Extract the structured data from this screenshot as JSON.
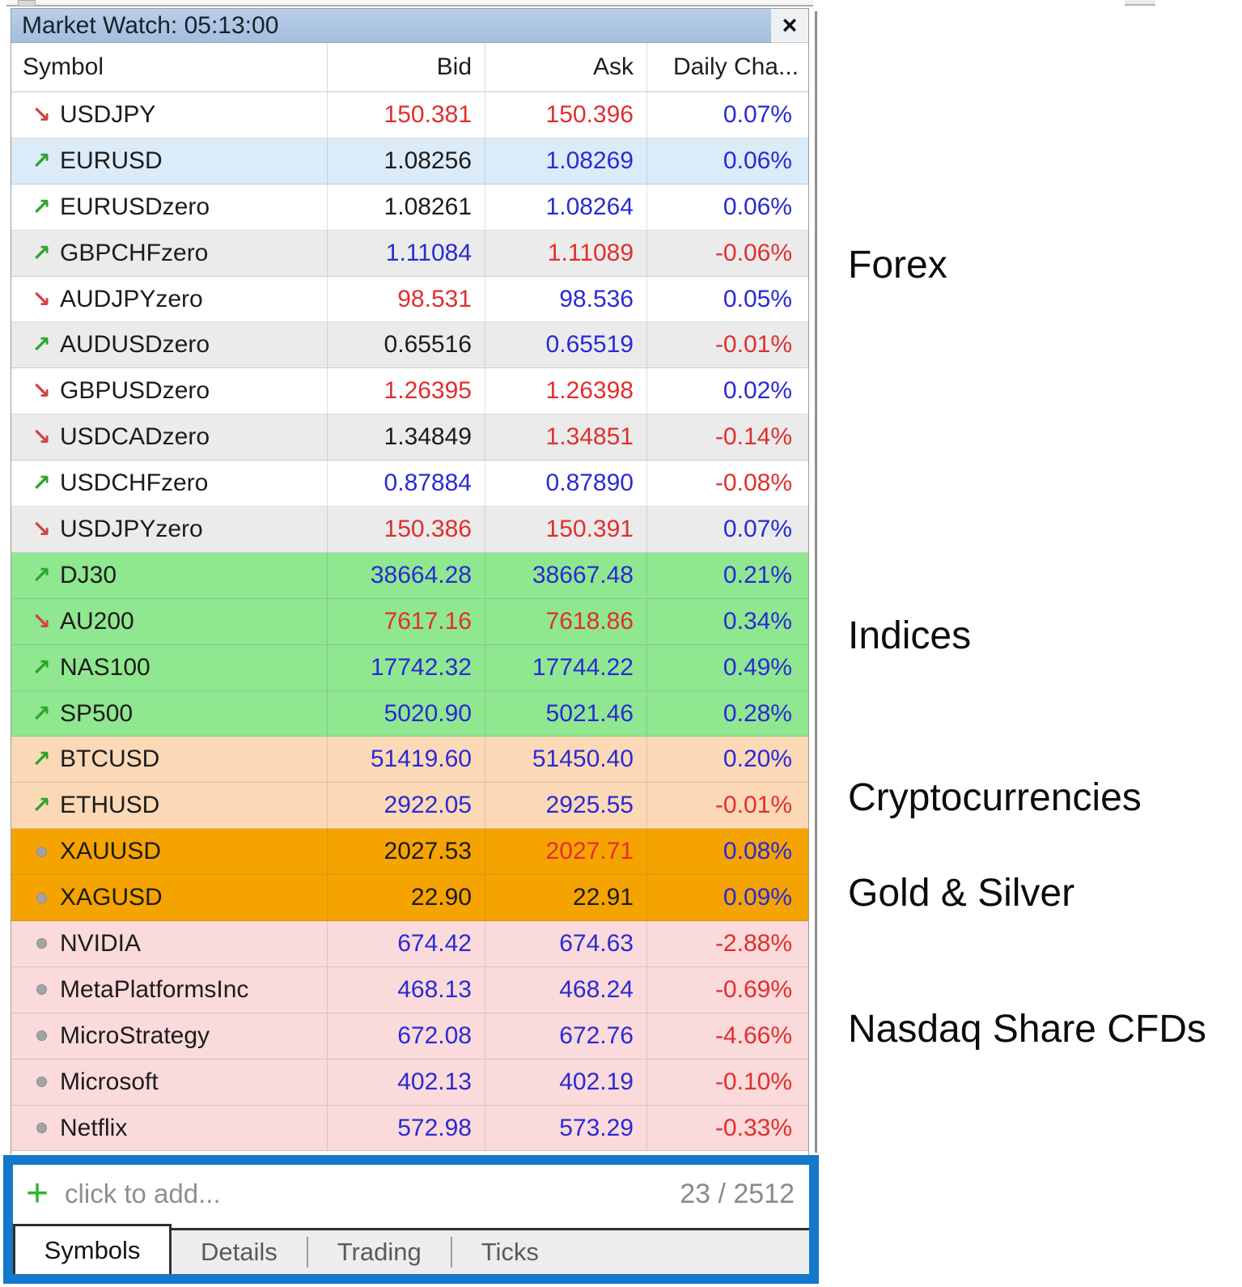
{
  "window": {
    "title": "Market Watch: 05:13:00",
    "close": "×"
  },
  "table": {
    "columns": [
      "Symbol",
      "Bid",
      "Ask",
      "Daily Cha..."
    ],
    "rows": [
      {
        "symbol": "USDJPY",
        "trend": "down",
        "bg": "white",
        "bid": "150.381",
        "bidColor": "red",
        "ask": "150.396",
        "askColor": "red",
        "change": "0.07%",
        "changeColor": "blue"
      },
      {
        "symbol": "EURUSD",
        "trend": "up",
        "bg": "blue",
        "bid": "1.08256",
        "bidColor": "black",
        "ask": "1.08269",
        "askColor": "blue",
        "change": "0.06%",
        "changeColor": "blue"
      },
      {
        "symbol": "EURUSDzero",
        "trend": "up",
        "bg": "white",
        "bid": "1.08261",
        "bidColor": "black",
        "ask": "1.08264",
        "askColor": "blue",
        "change": "0.06%",
        "changeColor": "blue"
      },
      {
        "symbol": "GBPCHFzero",
        "trend": "up",
        "bg": "alt",
        "bid": "1.11084",
        "bidColor": "blue",
        "ask": "1.11089",
        "askColor": "red",
        "change": "-0.06%",
        "changeColor": "red"
      },
      {
        "symbol": "AUDJPYzero",
        "trend": "down",
        "bg": "white",
        "bid": "98.531",
        "bidColor": "red",
        "ask": "98.536",
        "askColor": "blue",
        "change": "0.05%",
        "changeColor": "blue"
      },
      {
        "symbol": "AUDUSDzero",
        "trend": "up",
        "bg": "alt",
        "bid": "0.65516",
        "bidColor": "black",
        "ask": "0.65519",
        "askColor": "blue",
        "change": "-0.01%",
        "changeColor": "red"
      },
      {
        "symbol": "GBPUSDzero",
        "trend": "down",
        "bg": "white",
        "bid": "1.26395",
        "bidColor": "red",
        "ask": "1.26398",
        "askColor": "red",
        "change": "0.02%",
        "changeColor": "blue"
      },
      {
        "symbol": "USDCADzero",
        "trend": "down",
        "bg": "alt",
        "bid": "1.34849",
        "bidColor": "black",
        "ask": "1.34851",
        "askColor": "red",
        "change": "-0.14%",
        "changeColor": "red"
      },
      {
        "symbol": "USDCHFzero",
        "trend": "up",
        "bg": "white",
        "bid": "0.87884",
        "bidColor": "blue",
        "ask": "0.87890",
        "askColor": "blue",
        "change": "-0.08%",
        "changeColor": "red"
      },
      {
        "symbol": "USDJPYzero",
        "trend": "down",
        "bg": "alt",
        "bid": "150.386",
        "bidColor": "red",
        "ask": "150.391",
        "askColor": "red",
        "change": "0.07%",
        "changeColor": "blue"
      },
      {
        "symbol": "DJ30",
        "trend": "up",
        "bg": "green",
        "bid": "38664.28",
        "bidColor": "blue",
        "ask": "38667.48",
        "askColor": "blue",
        "change": "0.21%",
        "changeColor": "blue"
      },
      {
        "symbol": "AU200",
        "trend": "down",
        "bg": "green",
        "bid": "7617.16",
        "bidColor": "red",
        "ask": "7618.86",
        "askColor": "red",
        "change": "0.34%",
        "changeColor": "blue"
      },
      {
        "symbol": "NAS100",
        "trend": "up",
        "bg": "green",
        "bid": "17742.32",
        "bidColor": "blue",
        "ask": "17744.22",
        "askColor": "blue",
        "change": "0.49%",
        "changeColor": "blue"
      },
      {
        "symbol": "SP500",
        "trend": "up",
        "bg": "green",
        "bid": "5020.90",
        "bidColor": "blue",
        "ask": "5021.46",
        "askColor": "blue",
        "change": "0.28%",
        "changeColor": "blue"
      },
      {
        "symbol": "BTCUSD",
        "trend": "up",
        "bg": "peach",
        "bid": "51419.60",
        "bidColor": "blue",
        "ask": "51450.40",
        "askColor": "blue",
        "change": "0.20%",
        "changeColor": "blue"
      },
      {
        "symbol": "ETHUSD",
        "trend": "up",
        "bg": "peach",
        "bid": "2922.05",
        "bidColor": "blue",
        "ask": "2925.55",
        "askColor": "blue",
        "change": "-0.01%",
        "changeColor": "red"
      },
      {
        "symbol": "XAUUSD",
        "trend": "dot",
        "bg": "orange",
        "bid": "2027.53",
        "bidColor": "black",
        "ask": "2027.71",
        "askColor": "red",
        "change": "0.08%",
        "changeColor": "blue"
      },
      {
        "symbol": "XAGUSD",
        "trend": "dot",
        "bg": "orange",
        "bid": "22.90",
        "bidColor": "black",
        "ask": "22.91",
        "askColor": "black",
        "change": "0.09%",
        "changeColor": "blue"
      },
      {
        "symbol": "NVIDIA",
        "trend": "dot",
        "bg": "pink",
        "bid": "674.42",
        "bidColor": "blue",
        "ask": "674.63",
        "askColor": "blue",
        "change": "-2.88%",
        "changeColor": "red"
      },
      {
        "symbol": "MetaPlatformsInc",
        "trend": "dot",
        "bg": "pink",
        "bid": "468.13",
        "bidColor": "blue",
        "ask": "468.24",
        "askColor": "blue",
        "change": "-0.69%",
        "changeColor": "red"
      },
      {
        "symbol": "MicroStrategy",
        "trend": "dot",
        "bg": "pink",
        "bid": "672.08",
        "bidColor": "blue",
        "ask": "672.76",
        "askColor": "blue",
        "change": "-4.66%",
        "changeColor": "red"
      },
      {
        "symbol": "Microsoft",
        "trend": "dot",
        "bg": "pink",
        "bid": "402.13",
        "bidColor": "blue",
        "ask": "402.19",
        "askColor": "blue",
        "change": "-0.10%",
        "changeColor": "red"
      },
      {
        "symbol": "Netflix",
        "trend": "dot",
        "bg": "pink",
        "bid": "572.98",
        "bidColor": "blue",
        "ask": "573.29",
        "askColor": "blue",
        "change": "-0.33%",
        "changeColor": "red"
      }
    ]
  },
  "footer": {
    "plus": "+",
    "add_placeholder": "click to add...",
    "counter": "23 / 2512"
  },
  "tabs": [
    {
      "label": "Symbols",
      "active": true
    },
    {
      "label": "Details",
      "active": false
    },
    {
      "label": "Trading",
      "active": false
    },
    {
      "label": "Ticks",
      "active": false
    }
  ],
  "annotations": [
    {
      "label": "Forex"
    },
    {
      "label": "Indices"
    },
    {
      "label": "Cryptocurrencies"
    },
    {
      "label": "Gold & Silver"
    },
    {
      "label": "Nasdaq Share CFDs"
    }
  ],
  "colors": {
    "titlebar_blue": "#aac4de",
    "highlight_border_blue": "#1478cc",
    "row_highlight_blue": "#dcebf8",
    "row_alt_gray": "#ebebeb",
    "row_indices_green": "#8fe78f",
    "row_crypto_peach": "#fcd9b6",
    "row_metals_orange": "#f5a300",
    "row_shares_pink": "#fadada",
    "value_blue": "#2a2ad6",
    "value_red": "#e22e2e",
    "value_black": "#1c1c1c",
    "arrow_up_green": "#2ca52c",
    "arrow_down_red": "#cf4343",
    "plus_green": "#2db52d"
  }
}
